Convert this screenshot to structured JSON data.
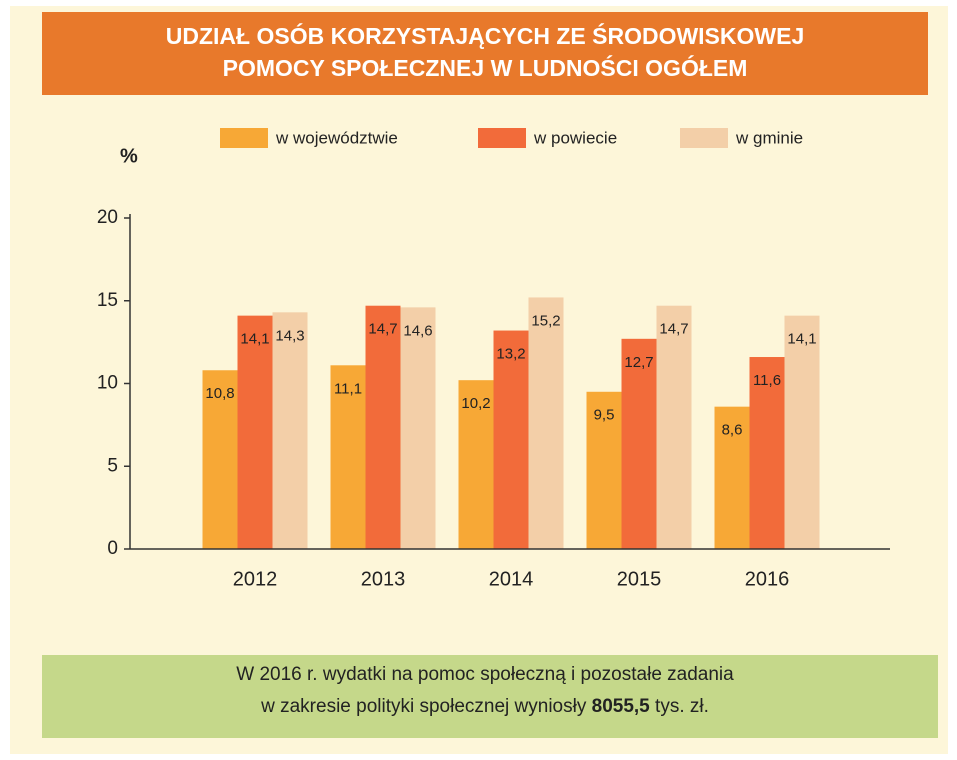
{
  "chart_data": {
    "type": "bar",
    "title": [
      "UDZIAŁ OSÓB KORZYSTAJĄCYCH ZE ŚRODOWISKOWEJ",
      "POMOCY SPOŁECZNEJ W LUDNOŚCI OGÓŁEM"
    ],
    "y_label": "%",
    "categories": [
      "2012",
      "2013",
      "2014",
      "2015",
      "2016"
    ],
    "series": [
      {
        "name": "w województwie",
        "color": "#f7a836",
        "values": [
          10.8,
          11.1,
          10.2,
          9.5,
          8.6
        ],
        "value_labels": [
          "10,8",
          "11,1",
          "10,2",
          "9,5",
          "8,6"
        ]
      },
      {
        "name": "w powiecie",
        "color": "#f26b3a",
        "values": [
          14.1,
          14.7,
          13.2,
          12.7,
          11.6
        ],
        "value_labels": [
          "14,1",
          "14,7",
          "13,2",
          "12,7",
          "11,6"
        ]
      },
      {
        "name": "w gminie",
        "color": "#f3cfa8",
        "values": [
          14.3,
          14.6,
          15.2,
          14.7,
          14.1
        ],
        "value_labels": [
          "14,3",
          "14,6",
          "15,2",
          "14,7",
          "14,1"
        ]
      }
    ],
    "ylim": [
      0,
      20
    ],
    "yticks": [
      0,
      5,
      10,
      15,
      20
    ],
    "note": {
      "line1": "W 2016 r. wydatki na pomoc społeczną i pozostałe zadania",
      "line2_start": "w zakresie polityki społecznej wyniosły",
      "line2_bold": "8055,5",
      "line2_end": "tys. zł."
    }
  }
}
